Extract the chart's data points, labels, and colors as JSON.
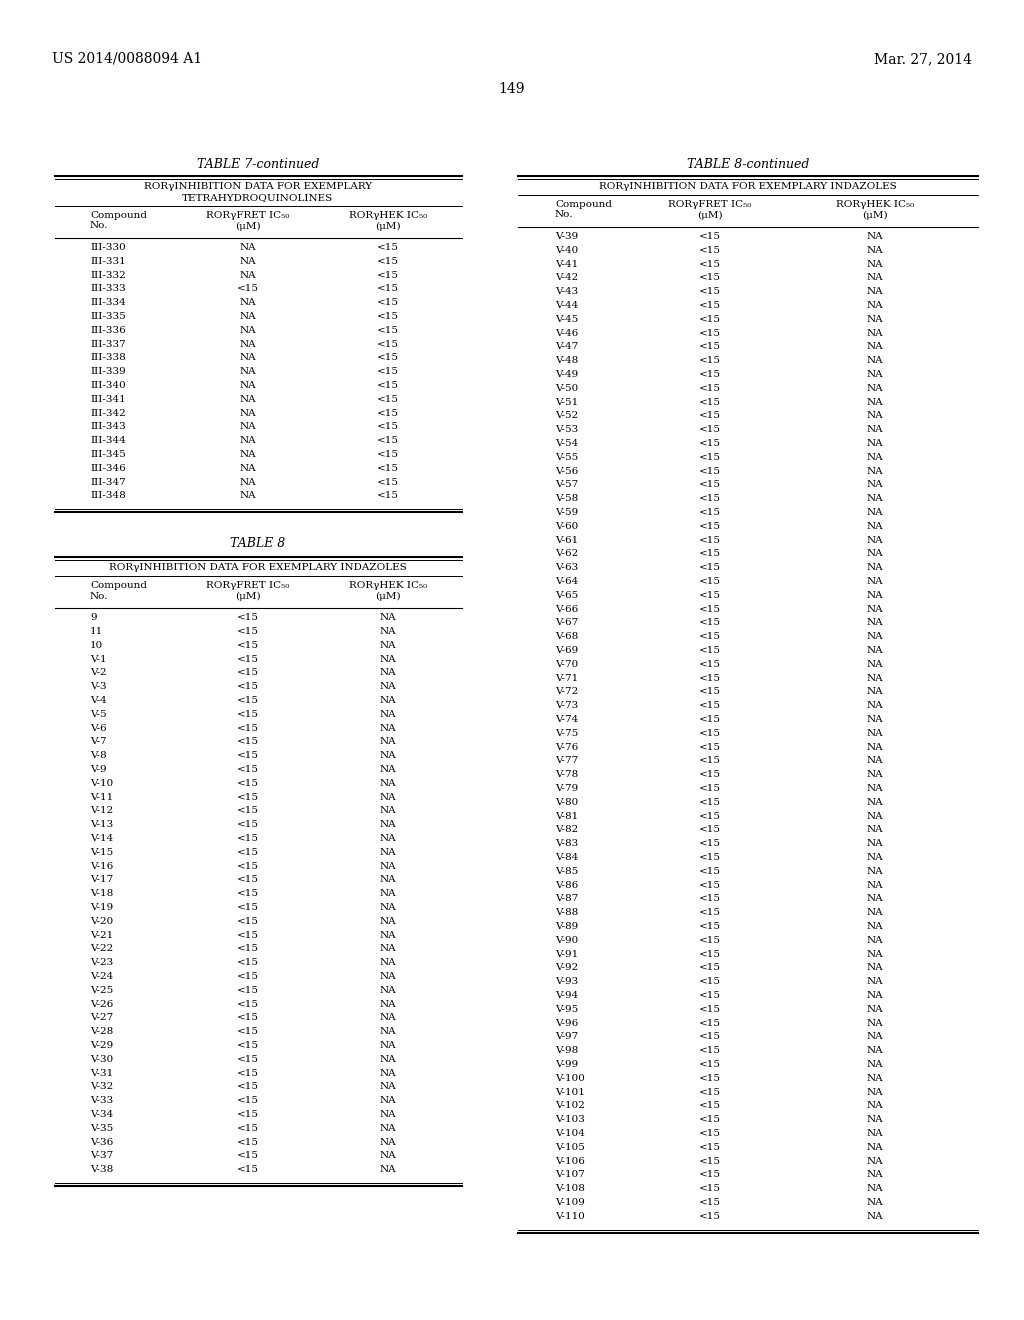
{
  "page_number": "149",
  "patent_left": "US 2014/0088094 A1",
  "patent_right": "Mar. 27, 2014",
  "table7_title": "TABLE 7-continued",
  "table7_subtitle1": "RORγINHIBITION DATA FOR EXEMPLARY",
  "table7_subtitle2": "TETRAHYDROQUINOLINES",
  "table8_title": "TABLE 8",
  "table8cont_title": "TABLE 8-continued",
  "table8_subtitle": "RORγINHIBITION DATA FOR EXEMPLARY INDAZOLES",
  "col1_hdr": "Compound\nNo.",
  "col2_hdr": "RORγFRET IC₅₀\n(μM)",
  "col3_hdr": "RORγHEK IC₅₀\n(μM)",
  "table7_data": [
    [
      "III-330",
      "NA",
      "<15"
    ],
    [
      "III-331",
      "NA",
      "<15"
    ],
    [
      "III-332",
      "NA",
      "<15"
    ],
    [
      "III-333",
      "<15",
      "<15"
    ],
    [
      "III-334",
      "NA",
      "<15"
    ],
    [
      "III-335",
      "NA",
      "<15"
    ],
    [
      "III-336",
      "NA",
      "<15"
    ],
    [
      "III-337",
      "NA",
      "<15"
    ],
    [
      "III-338",
      "NA",
      "<15"
    ],
    [
      "III-339",
      "NA",
      "<15"
    ],
    [
      "III-340",
      "NA",
      "<15"
    ],
    [
      "III-341",
      "NA",
      "<15"
    ],
    [
      "III-342",
      "NA",
      "<15"
    ],
    [
      "III-343",
      "NA",
      "<15"
    ],
    [
      "III-344",
      "NA",
      "<15"
    ],
    [
      "III-345",
      "NA",
      "<15"
    ],
    [
      "III-346",
      "NA",
      "<15"
    ],
    [
      "III-347",
      "NA",
      "<15"
    ],
    [
      "III-348",
      "NA",
      "<15"
    ]
  ],
  "table8_data": [
    [
      "9",
      "<15",
      "NA"
    ],
    [
      "11",
      "<15",
      "NA"
    ],
    [
      "10",
      "<15",
      "NA"
    ],
    [
      "V-1",
      "<15",
      "NA"
    ],
    [
      "V-2",
      "<15",
      "NA"
    ],
    [
      "V-3",
      "<15",
      "NA"
    ],
    [
      "V-4",
      "<15",
      "NA"
    ],
    [
      "V-5",
      "<15",
      "NA"
    ],
    [
      "V-6",
      "<15",
      "NA"
    ],
    [
      "V-7",
      "<15",
      "NA"
    ],
    [
      "V-8",
      "<15",
      "NA"
    ],
    [
      "V-9",
      "<15",
      "NA"
    ],
    [
      "V-10",
      "<15",
      "NA"
    ],
    [
      "V-11",
      "<15",
      "NA"
    ],
    [
      "V-12",
      "<15",
      "NA"
    ],
    [
      "V-13",
      "<15",
      "NA"
    ],
    [
      "V-14",
      "<15",
      "NA"
    ],
    [
      "V-15",
      "<15",
      "NA"
    ],
    [
      "V-16",
      "<15",
      "NA"
    ],
    [
      "V-17",
      "<15",
      "NA"
    ],
    [
      "V-18",
      "<15",
      "NA"
    ],
    [
      "V-19",
      "<15",
      "NA"
    ],
    [
      "V-20",
      "<15",
      "NA"
    ],
    [
      "V-21",
      "<15",
      "NA"
    ],
    [
      "V-22",
      "<15",
      "NA"
    ],
    [
      "V-23",
      "<15",
      "NA"
    ],
    [
      "V-24",
      "<15",
      "NA"
    ],
    [
      "V-25",
      "<15",
      "NA"
    ],
    [
      "V-26",
      "<15",
      "NA"
    ],
    [
      "V-27",
      "<15",
      "NA"
    ],
    [
      "V-28",
      "<15",
      "NA"
    ],
    [
      "V-29",
      "<15",
      "NA"
    ],
    [
      "V-30",
      "<15",
      "NA"
    ],
    [
      "V-31",
      "<15",
      "NA"
    ],
    [
      "V-32",
      "<15",
      "NA"
    ],
    [
      "V-33",
      "<15",
      "NA"
    ],
    [
      "V-34",
      "<15",
      "NA"
    ],
    [
      "V-35",
      "<15",
      "NA"
    ],
    [
      "V-36",
      "<15",
      "NA"
    ],
    [
      "V-37",
      "<15",
      "NA"
    ],
    [
      "V-38",
      "<15",
      "NA"
    ]
  ],
  "table8cont_data": [
    [
      "V-39",
      "<15",
      "NA"
    ],
    [
      "V-40",
      "<15",
      "NA"
    ],
    [
      "V-41",
      "<15",
      "NA"
    ],
    [
      "V-42",
      "<15",
      "NA"
    ],
    [
      "V-43",
      "<15",
      "NA"
    ],
    [
      "V-44",
      "<15",
      "NA"
    ],
    [
      "V-45",
      "<15",
      "NA"
    ],
    [
      "V-46",
      "<15",
      "NA"
    ],
    [
      "V-47",
      "<15",
      "NA"
    ],
    [
      "V-48",
      "<15",
      "NA"
    ],
    [
      "V-49",
      "<15",
      "NA"
    ],
    [
      "V-50",
      "<15",
      "NA"
    ],
    [
      "V-51",
      "<15",
      "NA"
    ],
    [
      "V-52",
      "<15",
      "NA"
    ],
    [
      "V-53",
      "<15",
      "NA"
    ],
    [
      "V-54",
      "<15",
      "NA"
    ],
    [
      "V-55",
      "<15",
      "NA"
    ],
    [
      "V-56",
      "<15",
      "NA"
    ],
    [
      "V-57",
      "<15",
      "NA"
    ],
    [
      "V-58",
      "<15",
      "NA"
    ],
    [
      "V-59",
      "<15",
      "NA"
    ],
    [
      "V-60",
      "<15",
      "NA"
    ],
    [
      "V-61",
      "<15",
      "NA"
    ],
    [
      "V-62",
      "<15",
      "NA"
    ],
    [
      "V-63",
      "<15",
      "NA"
    ],
    [
      "V-64",
      "<15",
      "NA"
    ],
    [
      "V-65",
      "<15",
      "NA"
    ],
    [
      "V-66",
      "<15",
      "NA"
    ],
    [
      "V-67",
      "<15",
      "NA"
    ],
    [
      "V-68",
      "<15",
      "NA"
    ],
    [
      "V-69",
      "<15",
      "NA"
    ],
    [
      "V-70",
      "<15",
      "NA"
    ],
    [
      "V-71",
      "<15",
      "NA"
    ],
    [
      "V-72",
      "<15",
      "NA"
    ],
    [
      "V-73",
      "<15",
      "NA"
    ],
    [
      "V-74",
      "<15",
      "NA"
    ],
    [
      "V-75",
      "<15",
      "NA"
    ],
    [
      "V-76",
      "<15",
      "NA"
    ],
    [
      "V-77",
      "<15",
      "NA"
    ],
    [
      "V-78",
      "<15",
      "NA"
    ],
    [
      "V-79",
      "<15",
      "NA"
    ],
    [
      "V-80",
      "<15",
      "NA"
    ],
    [
      "V-81",
      "<15",
      "NA"
    ],
    [
      "V-82",
      "<15",
      "NA"
    ],
    [
      "V-83",
      "<15",
      "NA"
    ],
    [
      "V-84",
      "<15",
      "NA"
    ],
    [
      "V-85",
      "<15",
      "NA"
    ],
    [
      "V-86",
      "<15",
      "NA"
    ],
    [
      "V-87",
      "<15",
      "NA"
    ],
    [
      "V-88",
      "<15",
      "NA"
    ],
    [
      "V-89",
      "<15",
      "NA"
    ],
    [
      "V-90",
      "<15",
      "NA"
    ],
    [
      "V-91",
      "<15",
      "NA"
    ],
    [
      "V-92",
      "<15",
      "NA"
    ],
    [
      "V-93",
      "<15",
      "NA"
    ],
    [
      "V-94",
      "<15",
      "NA"
    ],
    [
      "V-95",
      "<15",
      "NA"
    ],
    [
      "V-96",
      "<15",
      "NA"
    ],
    [
      "V-97",
      "<15",
      "NA"
    ],
    [
      "V-98",
      "<15",
      "NA"
    ],
    [
      "V-99",
      "<15",
      "NA"
    ],
    [
      "V-100",
      "<15",
      "NA"
    ],
    [
      "V-101",
      "<15",
      "NA"
    ],
    [
      "V-102",
      "<15",
      "NA"
    ],
    [
      "V-103",
      "<15",
      "NA"
    ],
    [
      "V-104",
      "<15",
      "NA"
    ],
    [
      "V-105",
      "<15",
      "NA"
    ],
    [
      "V-106",
      "<15",
      "NA"
    ],
    [
      "V-107",
      "<15",
      "NA"
    ],
    [
      "V-108",
      "<15",
      "NA"
    ],
    [
      "V-109",
      "<15",
      "NA"
    ],
    [
      "V-110",
      "<15",
      "NA"
    ]
  ]
}
